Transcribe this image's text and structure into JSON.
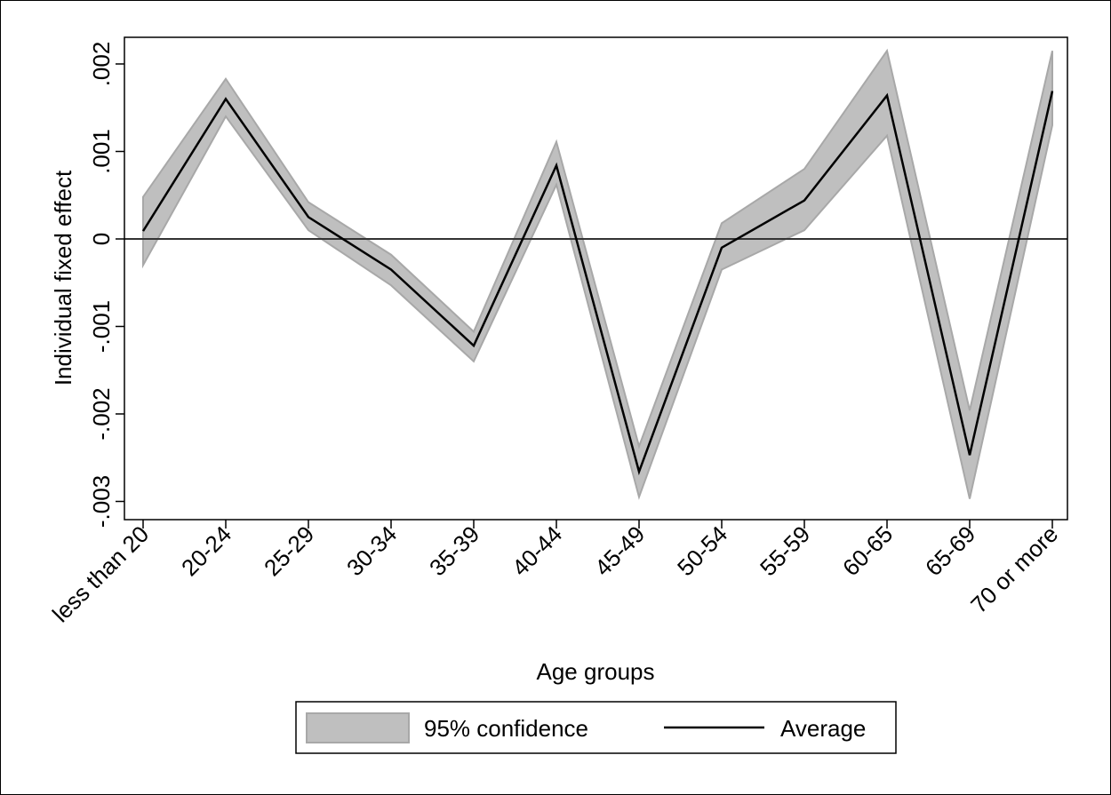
{
  "chart_data": {
    "type": "line",
    "title": "",
    "xlabel": "Age groups",
    "ylabel": "Individual fixed effect",
    "categories": [
      "less than 20",
      "20-24",
      "25-29",
      "30-34",
      "35-39",
      "40-44",
      "45-49",
      "50-54",
      "55-59",
      "60-65",
      "65-69",
      "70 or more"
    ],
    "ylim": [
      -0.0032,
      0.0023
    ],
    "yticks": [
      0.002,
      0.001,
      0,
      -0.001,
      -0.002,
      -0.003
    ],
    "ytick_labels": [
      ".002",
      ".001",
      "0",
      "-.001",
      "-.002",
      "-.003"
    ],
    "reference_line_y": 0,
    "grid": false,
    "series": [
      {
        "name": "Average",
        "values": [
          9e-05,
          0.0016,
          0.00025,
          -0.00035,
          -0.00122,
          0.00084,
          -0.00266,
          -0.0001,
          0.00044,
          0.00164,
          -0.00247,
          0.00169
        ],
        "color": "#000000"
      },
      {
        "name": "95% confidence",
        "lower": [
          -0.0003,
          0.0014,
          0.0001,
          -0.00053,
          -0.0014,
          0.00062,
          -0.00295,
          -0.00035,
          0.0001,
          0.00118,
          -0.00297,
          0.0013
        ],
        "upper": [
          0.00048,
          0.00183,
          0.00042,
          -0.00018,
          -0.00106,
          0.00111,
          -0.00237,
          0.00018,
          0.0008,
          0.00215,
          -0.00196,
          0.00215
        ],
        "color": "#bfbfbf"
      }
    ],
    "legend": {
      "placement": "bottom",
      "items": [
        "95% confidence",
        "Average"
      ]
    }
  }
}
